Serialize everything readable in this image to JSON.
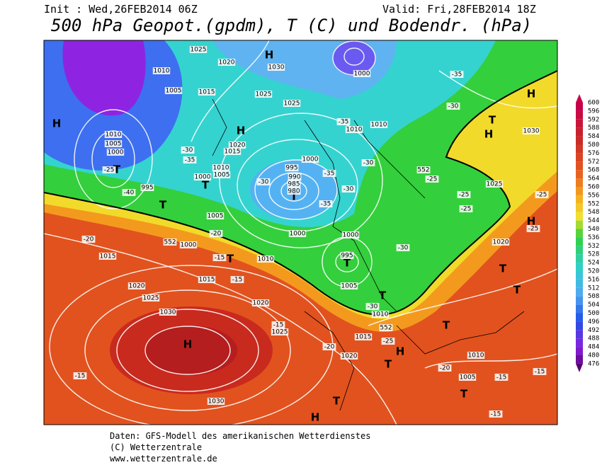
{
  "header": {
    "init": "Init : Wed,26FEB2014 06Z",
    "valid": "Valid: Fri,28FEB2014 18Z",
    "title": "500 hPa Geopot.(gpdm), T (C) und Bodendr. (hPa)"
  },
  "colorbar": {
    "ticks": [
      600,
      596,
      592,
      588,
      584,
      580,
      576,
      572,
      568,
      564,
      560,
      556,
      552,
      548,
      544,
      540,
      536,
      532,
      528,
      524,
      520,
      516,
      512,
      508,
      504,
      500,
      496,
      492,
      488,
      484,
      480,
      476
    ]
  },
  "map": {
    "labels": [
      "H",
      "T",
      "T",
      "H",
      "H",
      "T",
      "T",
      "T",
      "H",
      "T",
      "T",
      "H",
      "T",
      "H",
      "H",
      "T",
      "T",
      "T",
      "T",
      "H",
      "T",
      "T",
      "H",
      "1025",
      "1010",
      "1005",
      "1015",
      "1020",
      "1030",
      "1025",
      "1025",
      "1010",
      "1005",
      "1000",
      "995",
      "1010",
      "1005",
      "1000",
      "1015",
      "1020",
      "1000",
      "995",
      "990",
      "985",
      "980",
      "1000",
      "1000",
      "1000",
      "995",
      "1005",
      "1010",
      "1010",
      "1010",
      "1005",
      "1000",
      "552",
      "552",
      "552",
      "1015",
      "1010",
      "1015",
      "1020",
      "1025",
      "1030",
      "1020",
      "1025",
      "1015",
      "1020",
      "1010",
      "1005",
      "1030",
      "1020",
      "1025",
      "1030",
      "-35",
      "-40",
      "-25",
      "-30",
      "-35",
      "-30",
      "-35",
      "-30",
      "-25",
      "-25",
      "-25",
      "-20",
      "-20",
      "-15",
      "-15",
      "-15",
      "-20",
      "-25",
      "-20",
      "-15",
      "-15",
      "-15",
      "-15",
      "-30",
      "-30",
      "-35",
      "-30",
      "-25",
      "-25",
      "-30",
      "-35"
    ]
  },
  "footer": {
    "line1": "Daten: GFS-Modell des amerikanischen Wetterdienstes",
    "line2": "(C) Wetterzentrale",
    "line3": "www.wetterzentrale.de"
  }
}
